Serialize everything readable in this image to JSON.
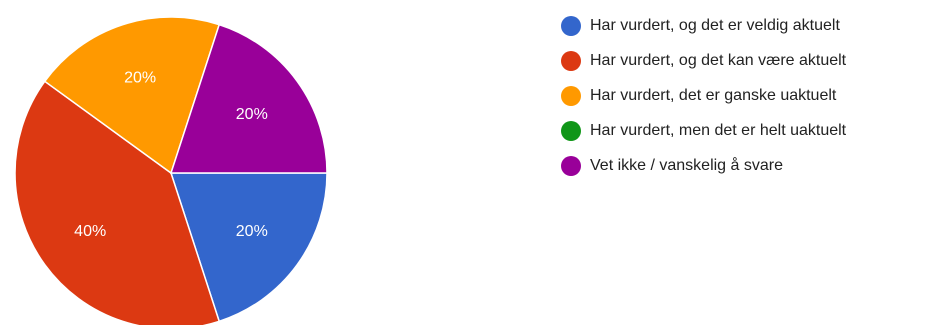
{
  "chart_data": {
    "type": "pie",
    "title": "",
    "legend_position": "right",
    "slices": [
      {
        "label": "Har vurdert, og det er veldig aktuelt",
        "value": 20,
        "display": "20%",
        "color": "#3366cc"
      },
      {
        "label": "Har vurdert, og det kan være aktuelt",
        "value": 40,
        "display": "40%",
        "color": "#dc3912"
      },
      {
        "label": "Har vurdert, det er ganske uaktuelt",
        "value": 20,
        "display": "20%",
        "color": "#ff9900"
      },
      {
        "label": "Har vurdert, men det er helt uaktuelt",
        "value": 0,
        "display": "",
        "color": "#109618"
      },
      {
        "label": "Vet ikke / vanskelig å svare",
        "value": 20,
        "display": "20%",
        "color": "#990099"
      }
    ]
  }
}
